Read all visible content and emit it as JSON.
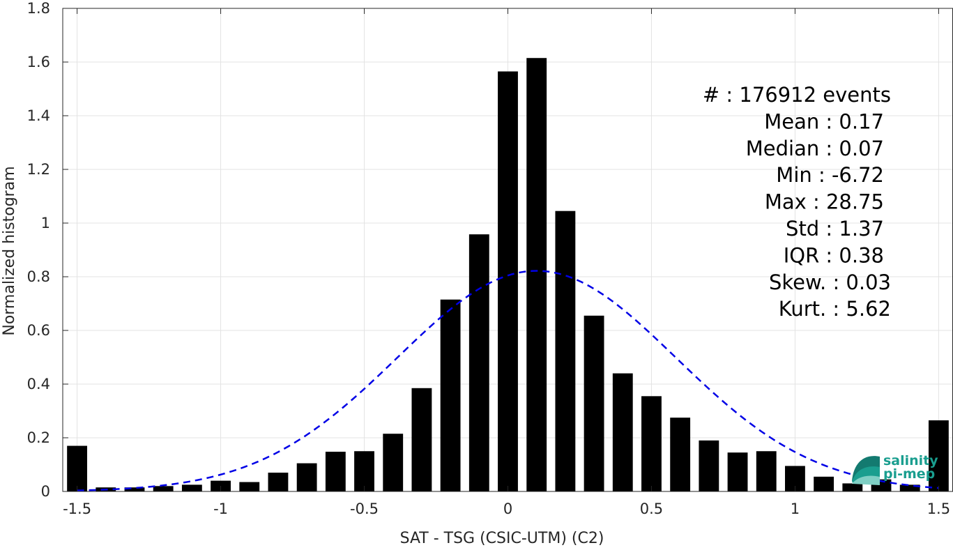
{
  "chart_data": {
    "type": "bar",
    "xlabel": "SAT - TSG (CSIC-UTM) (C2)",
    "ylabel": "Normalized histogram",
    "xlim": [
      -1.55,
      1.55
    ],
    "ylim": [
      0,
      1.8
    ],
    "xticks": [
      -1.5,
      -1,
      -0.5,
      0,
      0.5,
      1,
      1.5
    ],
    "xtick_labels": [
      "-1.5",
      "-1",
      "-0.5",
      "0",
      "0.5",
      "1",
      "1.5"
    ],
    "yticks": [
      0,
      0.2,
      0.4,
      0.6,
      0.8,
      1,
      1.2,
      1.4,
      1.6,
      1.8
    ],
    "ytick_labels": [
      "0",
      "0.2",
      "0.4",
      "0.6",
      "0.8",
      "1",
      "1.2",
      "1.4",
      "1.6",
      "1.8"
    ],
    "grid": true,
    "bar_width": 0.07,
    "bar_color": "#000000",
    "series": [
      {
        "x": [
          -1.5,
          -1.4,
          -1.3,
          -1.2,
          -1.1,
          -1.0,
          -0.9,
          -0.8,
          -0.7,
          -0.6,
          -0.5,
          -0.4,
          -0.3,
          -0.2,
          -0.1,
          0.0,
          0.1,
          0.2,
          0.3,
          0.4,
          0.5,
          0.6,
          0.7,
          0.8,
          0.9,
          1.0,
          1.1,
          1.2,
          1.3,
          1.4,
          1.5
        ],
        "values": [
          0.17,
          0.015,
          0.015,
          0.02,
          0.025,
          0.04,
          0.035,
          0.07,
          0.105,
          0.148,
          0.15,
          0.215,
          0.385,
          0.715,
          0.958,
          1.565,
          1.615,
          1.045,
          0.655,
          0.44,
          0.355,
          0.275,
          0.19,
          0.145,
          0.15,
          0.095,
          0.055,
          0.03,
          0.045,
          0.025,
          0.265
        ]
      }
    ],
    "fit_curve": {
      "style": "dashed",
      "color": "#0000e6",
      "mean": 0.1,
      "std": 0.485,
      "peak": 0.822,
      "x_range": [
        -1.5,
        1.5
      ]
    },
    "annotations": [
      "#  : 176912 events",
      "Mean : 0.17",
      "Median : 0.07",
      "Min : -6.72",
      "Max : 28.75",
      "Std : 1.37",
      "IQR : 0.38",
      "Skew. : 0.03",
      "Kurt. : 5.62"
    ],
    "logo": {
      "line1": "salinity",
      "line2": "pi-mep",
      "color": "#1a9e8f"
    }
  }
}
